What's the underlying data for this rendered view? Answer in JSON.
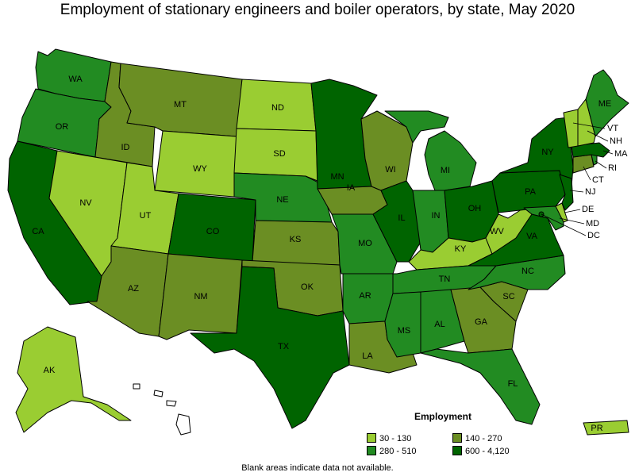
{
  "title": "Employment of stationary engineers and boiler operators, by state, May 2020",
  "legend": {
    "title": "Employment",
    "bins": [
      {
        "label": "30 - 130",
        "color": "#9acd32"
      },
      {
        "label": "140 - 270",
        "color": "#6b8e23"
      },
      {
        "label": "280 - 510",
        "color": "#228b22"
      },
      {
        "label": "600 - 4,120",
        "color": "#006400"
      }
    ]
  },
  "footnote": "Blank areas indicate data not available.",
  "states": [
    {
      "abbr": "WA",
      "bin": 2
    },
    {
      "abbr": "OR",
      "bin": 2
    },
    {
      "abbr": "CA",
      "bin": 3
    },
    {
      "abbr": "ID",
      "bin": 1
    },
    {
      "abbr": "NV",
      "bin": 0
    },
    {
      "abbr": "UT",
      "bin": 0
    },
    {
      "abbr": "AZ",
      "bin": 1
    },
    {
      "abbr": "MT",
      "bin": 1
    },
    {
      "abbr": "WY",
      "bin": 0
    },
    {
      "abbr": "CO",
      "bin": 3
    },
    {
      "abbr": "NM",
      "bin": 1
    },
    {
      "abbr": "ND",
      "bin": 0
    },
    {
      "abbr": "SD",
      "bin": 0
    },
    {
      "abbr": "NE",
      "bin": 2
    },
    {
      "abbr": "KS",
      "bin": 1
    },
    {
      "abbr": "OK",
      "bin": 1
    },
    {
      "abbr": "TX",
      "bin": 3
    },
    {
      "abbr": "MN",
      "bin": 3
    },
    {
      "abbr": "IA",
      "bin": 1
    },
    {
      "abbr": "MO",
      "bin": 2
    },
    {
      "abbr": "AR",
      "bin": 2
    },
    {
      "abbr": "LA",
      "bin": 1
    },
    {
      "abbr": "WI",
      "bin": 1
    },
    {
      "abbr": "IL",
      "bin": 3
    },
    {
      "abbr": "MI",
      "bin": 2
    },
    {
      "abbr": "IN",
      "bin": 2
    },
    {
      "abbr": "OH",
      "bin": 3
    },
    {
      "abbr": "KY",
      "bin": 0
    },
    {
      "abbr": "TN",
      "bin": 2
    },
    {
      "abbr": "MS",
      "bin": 2
    },
    {
      "abbr": "AL",
      "bin": 2
    },
    {
      "abbr": "GA",
      "bin": 1
    },
    {
      "abbr": "FL",
      "bin": 2
    },
    {
      "abbr": "SC",
      "bin": 1
    },
    {
      "abbr": "NC",
      "bin": 2
    },
    {
      "abbr": "VA",
      "bin": 3
    },
    {
      "abbr": "WV",
      "bin": 0
    },
    {
      "abbr": "PA",
      "bin": 3
    },
    {
      "abbr": "NY",
      "bin": 3
    },
    {
      "abbr": "ME",
      "bin": 2
    },
    {
      "abbr": "VT",
      "bin": 0
    },
    {
      "abbr": "NH",
      "bin": 0
    },
    {
      "abbr": "MA",
      "bin": 3
    },
    {
      "abbr": "RI",
      "bin": 2
    },
    {
      "abbr": "CT",
      "bin": 1
    },
    {
      "abbr": "NJ",
      "bin": 3
    },
    {
      "abbr": "DE",
      "bin": 0
    },
    {
      "abbr": "MD",
      "bin": 2
    },
    {
      "abbr": "DC",
      "bin": 3
    },
    {
      "abbr": "AK",
      "bin": 0
    },
    {
      "abbr": "HI",
      "bin": null
    },
    {
      "abbr": "PR",
      "bin": 0
    }
  ]
}
